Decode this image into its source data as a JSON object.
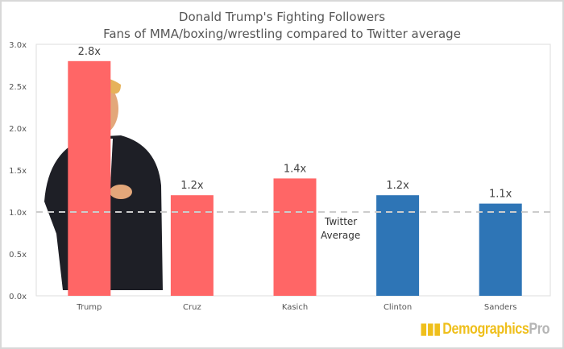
{
  "chart_data": {
    "type": "bar",
    "title": "Donald Trump's Fighting Followers",
    "subtitle": "Fans of MMA/boxing/wrestling compared to Twitter average",
    "categories": [
      "Trump",
      "Cruz",
      "Kasich",
      "Clinton",
      "Sanders"
    ],
    "values": [
      2.8,
      1.2,
      1.4,
      1.2,
      1.1
    ],
    "data_labels": [
      "2.8x",
      "1.2x",
      "1.4x",
      "1.2x",
      "1.1x"
    ],
    "colors": [
      "#ff6666",
      "#ff6666",
      "#ff6666",
      "#2e75b6",
      "#2e75b6"
    ],
    "ylim": [
      0,
      3
    ],
    "yticks": [
      0,
      0.5,
      1,
      1.5,
      2,
      2.5,
      3
    ],
    "ytick_labels": [
      "0.0x",
      "0.5x",
      "1.0x",
      "1.5x",
      "2.0x",
      "2.5x",
      "3.0x"
    ],
    "reference_line": {
      "value": 1.0,
      "label_line1": "Twitter",
      "label_line2": "Average",
      "style": "dashed",
      "color": "#cccccc"
    },
    "grid": false,
    "legend": "none"
  },
  "branding": {
    "logo_part1": "Demographics",
    "logo_part2": "Pro"
  }
}
